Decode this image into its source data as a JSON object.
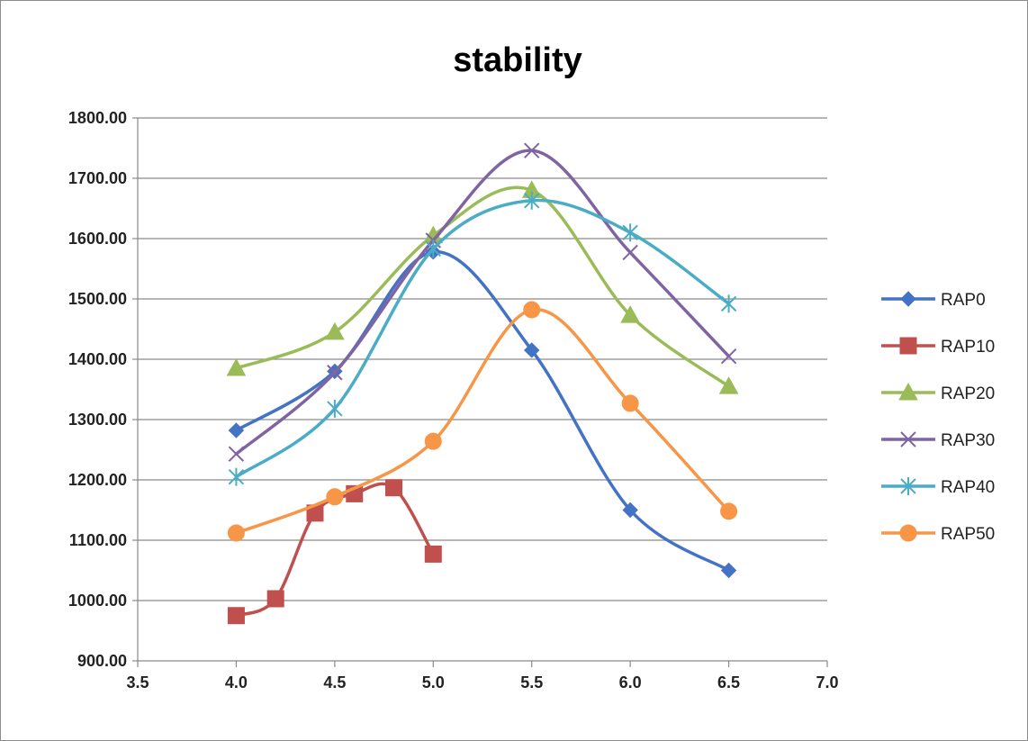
{
  "chart_data": {
    "type": "scatter",
    "title": "stability",
    "xlabel": "",
    "ylabel": "",
    "xlim": [
      3.5,
      7.0
    ],
    "ylim": [
      900,
      1800
    ],
    "x_ticks": [
      "3.5",
      "4.0",
      "4.5",
      "5.0",
      "5.5",
      "6.0",
      "6.5",
      "7.0"
    ],
    "y_ticks": [
      "900.00",
      "1000.00",
      "1100.00",
      "1200.00",
      "1300.00",
      "1400.00",
      "1500.00",
      "1600.00",
      "1700.00",
      "1800.00"
    ],
    "grid": "horizontal",
    "legend": "right",
    "series": [
      {
        "name": "RAP0",
        "color": "#4472C4",
        "marker": "diamond",
        "x": [
          4.0,
          4.5,
          5.0,
          5.5,
          6.0,
          6.5
        ],
        "y": [
          1282,
          1380,
          1578,
          1415,
          1150,
          1050
        ]
      },
      {
        "name": "RAP10",
        "color": "#C0504D",
        "marker": "square",
        "x": [
          4.0,
          4.2,
          4.4,
          4.6,
          4.8,
          5.0
        ],
        "y": [
          975,
          1003,
          1145,
          1177,
          1187,
          1077
        ]
      },
      {
        "name": "RAP20",
        "color": "#9BBB59",
        "marker": "triangle",
        "x": [
          4.0,
          4.5,
          5.0,
          5.5,
          6.0,
          6.5
        ],
        "y": [
          1385,
          1445,
          1605,
          1680,
          1473,
          1355
        ]
      },
      {
        "name": "RAP30",
        "color": "#8064A2",
        "marker": "x",
        "x": [
          4.0,
          4.5,
          5.0,
          5.5,
          6.0,
          6.5
        ],
        "y": [
          1243,
          1378,
          1597,
          1746,
          1577,
          1405
        ]
      },
      {
        "name": "RAP40",
        "color": "#4BACC6",
        "marker": "star",
        "x": [
          4.0,
          4.5,
          5.0,
          5.5,
          6.0,
          6.5
        ],
        "y": [
          1205,
          1318,
          1583,
          1663,
          1610,
          1492
        ]
      },
      {
        "name": "RAP50",
        "color": "#F79646",
        "marker": "circle",
        "x": [
          4.0,
          4.5,
          5.0,
          5.5,
          6.0,
          6.5
        ],
        "y": [
          1112,
          1172,
          1264,
          1482,
          1327,
          1148
        ]
      }
    ]
  }
}
